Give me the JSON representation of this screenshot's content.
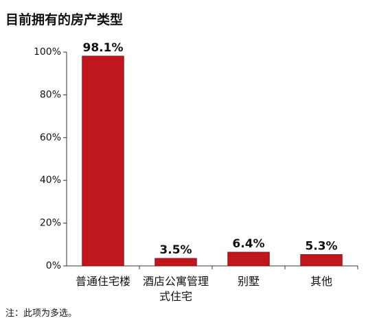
{
  "chart_data": {
    "type": "bar",
    "title": "目前拥有的房产类型",
    "categories": [
      "普通住宅楼",
      "酒店公寓管理式住宅",
      "别墅",
      "其他"
    ],
    "values": [
      98.1,
      3.5,
      6.4,
      5.3
    ],
    "value_labels": [
      "98.1%",
      "3.5%",
      "6.4%",
      "5.3%"
    ],
    "color": "#c0161d",
    "ylim": [
      0,
      100
    ],
    "yticks": [
      {
        "value": 0,
        "label": "0%"
      },
      {
        "value": 20,
        "label": "20%"
      },
      {
        "value": 40,
        "label": "40%"
      },
      {
        "value": 60,
        "label": "60%"
      },
      {
        "value": 80,
        "label": "80%"
      },
      {
        "value": 100,
        "label": "100%"
      }
    ],
    "grid": false,
    "note": "注：此项为多选。"
  }
}
